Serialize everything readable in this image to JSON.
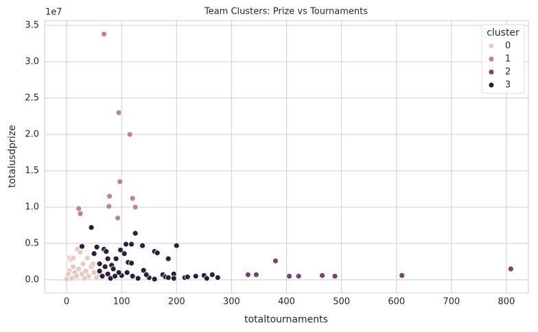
{
  "chart_data": {
    "type": "scatter",
    "title": "Team Clusters: Prize vs Tournaments",
    "x_label": "totaltournaments",
    "y_label": "totalusdprize",
    "y_offset_label": "1e7",
    "legend_title": "cluster",
    "legend_position": "upper right",
    "grid": true,
    "xlim": [
      -40,
      840
    ],
    "ylim": [
      -0.18,
      3.566
    ],
    "xticks": [
      0,
      100,
      200,
      300,
      400,
      500,
      600,
      700,
      800
    ],
    "yticks": [
      {
        "value": 0,
        "label": "0.0"
      },
      {
        "value": 0.5,
        "label": "0.5"
      },
      {
        "value": 1,
        "label": "1.0"
      },
      {
        "value": 1.5,
        "label": "1.5"
      },
      {
        "value": 2,
        "label": "2.0"
      },
      {
        "value": 2.5,
        "label": "2.5"
      },
      {
        "value": 3,
        "label": "3.0"
      },
      {
        "value": 3.5,
        "label": "3.5"
      }
    ],
    "series": [
      {
        "name": "0",
        "color": "#ecc9bf",
        "x": [
          5,
          12,
          20,
          25,
          30,
          38,
          8,
          15,
          2,
          0,
          10,
          18,
          22,
          28,
          35,
          40,
          45,
          50,
          55,
          5,
          33,
          48,
          60,
          3,
          12
        ],
        "y": [
          0.3,
          0.18,
          0.42,
          0.38,
          0.22,
          0.3,
          0.28,
          0.1,
          0.05,
          0.01,
          0.02,
          0.05,
          0.15,
          0.08,
          0.12,
          0.05,
          0.18,
          0.1,
          0.03,
          0.12,
          0.02,
          0.22,
          0.07,
          0.08,
          0.3
        ]
      },
      {
        "name": "1",
        "color": "#c27f98",
        "x": [
          68,
          95,
          115,
          97,
          78,
          120,
          77,
          125,
          22,
          25,
          93
        ],
        "y": [
          3.38,
          2.3,
          2.0,
          1.35,
          1.15,
          1.12,
          1.01,
          1.0,
          0.98,
          0.91,
          0.85
        ]
      },
      {
        "name": "2",
        "color": "#7a426f",
        "x": [
          380,
          330,
          345,
          405,
          422,
          465,
          488,
          610,
          808
        ],
        "y": [
          0.26,
          0.07,
          0.07,
          0.05,
          0.05,
          0.06,
          0.05,
          0.06,
          0.15
        ]
      },
      {
        "name": "3",
        "color": "#2d1e3e",
        "x": [
          45,
          125,
          28,
          200,
          108,
          118,
          138,
          98,
          55,
          68,
          72,
          160,
          165,
          105,
          50,
          185,
          75,
          90,
          112,
          118,
          60,
          82,
          140,
          175,
          180,
          185,
          195,
          195,
          215,
          220,
          235,
          250,
          255,
          265,
          275,
          160,
          150,
          130,
          100,
          95,
          85,
          70,
          65,
          110,
          80,
          120,
          145,
          88,
          60,
          75
        ],
        "y": [
          0.72,
          0.64,
          0.46,
          0.47,
          0.49,
          0.49,
          0.47,
          0.41,
          0.45,
          0.42,
          0.39,
          0.39,
          0.37,
          0.36,
          0.36,
          0.29,
          0.29,
          0.29,
          0.24,
          0.23,
          0.22,
          0.2,
          0.13,
          0.07,
          0.04,
          0.03,
          0.08,
          0.02,
          0.03,
          0.04,
          0.05,
          0.06,
          0.02,
          0.07,
          0.03,
          0.01,
          0.03,
          0.02,
          0.06,
          0.1,
          0.15,
          0.18,
          0.05,
          0.1,
          0.02,
          0.05,
          0.07,
          0.05,
          0.12,
          0.08
        ]
      }
    ]
  }
}
